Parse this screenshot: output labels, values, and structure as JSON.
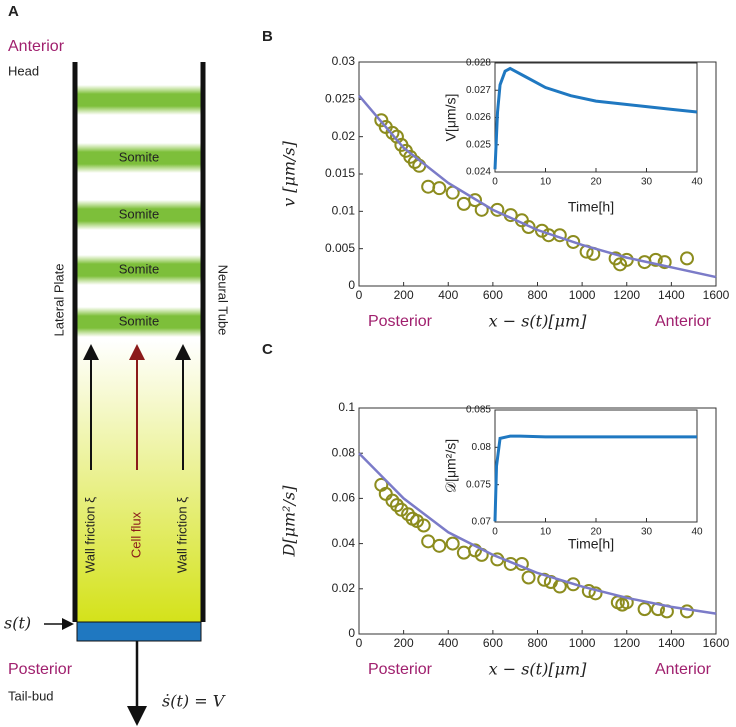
{
  "diagram": {
    "panel_label": "A",
    "top_label": "Anterior",
    "top_sublabel": "Head",
    "somites": [
      "Somite",
      "Somite",
      "Somite",
      "Somite"
    ],
    "left_label": "Lateral Plate",
    "right_label": "Neural Tube",
    "arrows": [
      "Wall friction ξ",
      "Cell flux",
      "Wall friction ξ"
    ],
    "front_label": "s(t)",
    "bottom_label": "Posterior",
    "bottom_sublabel": "Tail-bud",
    "velocity_label": "ṡ(t) = V"
  },
  "chart_data": [
    {
      "type": "scatter",
      "panel_label": "B",
      "y_label": "v [μm/s]",
      "x_label": "x − s(t)[μm]",
      "annotations": [
        "Posterior",
        "Anterior"
      ],
      "xlim": [
        0,
        1600
      ],
      "xticks": [
        0,
        200,
        400,
        600,
        800,
        1000,
        1200,
        1400,
        1600
      ],
      "ylim": [
        0,
        0.03
      ],
      "yticks": [
        0,
        0.005,
        0.01,
        0.015,
        0.02,
        0.025,
        0.03
      ],
      "series": [
        {
          "type": "scatter",
          "color": "#8c8c1e",
          "x": [
            100,
            120,
            150,
            170,
            190,
            210,
            230,
            250,
            270,
            310,
            360,
            420,
            470,
            520,
            550,
            620,
            680,
            730,
            760,
            820,
            850,
            900,
            960,
            1020,
            1050,
            1150,
            1170,
            1200,
            1280,
            1330,
            1370,
            1470
          ],
          "values": [
            0.0222,
            0.0213,
            0.0205,
            0.02,
            0.0189,
            0.0181,
            0.0173,
            0.0166,
            0.0161,
            0.0133,
            0.0131,
            0.0125,
            0.011,
            0.0115,
            0.0102,
            0.0102,
            0.0095,
            0.0088,
            0.0079,
            0.0074,
            0.0068,
            0.0068,
            0.0059,
            0.0046,
            0.0043,
            0.0037,
            0.0029,
            0.0035,
            0.0032,
            0.0035,
            0.0032,
            0.0037
          ]
        },
        {
          "type": "line",
          "color": "#7b7bc8",
          "x": [
            0,
            200,
            400,
            600,
            800,
            1000,
            1200,
            1400,
            1600
          ],
          "values": [
            0.0255,
            0.0185,
            0.0138,
            0.0102,
            0.0075,
            0.0055,
            0.0038,
            0.0025,
            0.0012
          ]
        }
      ]
    },
    {
      "type": "line",
      "y_label": "V[μm/s]",
      "x_label": "Time[h]",
      "xlim": [
        0,
        40
      ],
      "xticks": [
        0,
        10,
        20,
        30,
        40
      ],
      "ylim": [
        0.024,
        0.028
      ],
      "yticks": [
        0.024,
        0.025,
        0.026,
        0.027,
        0.028
      ],
      "series": [
        {
          "type": "line",
          "color": "#1f78c1",
          "x": [
            0,
            0.5,
            1,
            2,
            3,
            4,
            6,
            8,
            10,
            15,
            20,
            25,
            30,
            35,
            40
          ],
          "values": [
            0.0241,
            0.0262,
            0.0272,
            0.0277,
            0.0278,
            0.0277,
            0.0275,
            0.0273,
            0.0271,
            0.0268,
            0.0266,
            0.0265,
            0.0264,
            0.0263,
            0.0262
          ]
        }
      ]
    },
    {
      "type": "scatter",
      "panel_label": "C",
      "y_label": "D[μm²/s]",
      "x_label": "x − s(t)[μm]",
      "annotations": [
        "Posterior",
        "Anterior"
      ],
      "xlim": [
        0,
        1600
      ],
      "xticks": [
        0,
        200,
        400,
        600,
        800,
        1000,
        1200,
        1400,
        1600
      ],
      "ylim": [
        0,
        0.1
      ],
      "yticks": [
        0,
        0.02,
        0.04,
        0.06,
        0.08,
        0.1
      ],
      "series": [
        {
          "type": "scatter",
          "color": "#8c8c1e",
          "x": [
            100,
            120,
            150,
            170,
            190,
            220,
            240,
            260,
            290,
            310,
            360,
            420,
            470,
            520,
            550,
            620,
            680,
            730,
            760,
            830,
            860,
            900,
            960,
            1030,
            1060,
            1160,
            1180,
            1200,
            1280,
            1340,
            1380,
            1470
          ],
          "values": [
            0.066,
            0.062,
            0.059,
            0.057,
            0.055,
            0.053,
            0.051,
            0.05,
            0.048,
            0.041,
            0.039,
            0.04,
            0.036,
            0.037,
            0.035,
            0.033,
            0.031,
            0.031,
            0.025,
            0.024,
            0.023,
            0.021,
            0.022,
            0.019,
            0.018,
            0.014,
            0.013,
            0.014,
            0.011,
            0.011,
            0.01,
            0.01
          ]
        },
        {
          "type": "line",
          "color": "#7b7bc8",
          "x": [
            0,
            200,
            400,
            600,
            800,
            1000,
            1200,
            1400,
            1600
          ],
          "values": [
            0.08,
            0.06,
            0.045,
            0.035,
            0.027,
            0.021,
            0.016,
            0.012,
            0.009
          ]
        }
      ]
    },
    {
      "type": "line",
      "y_label": "𝒟[μm²/s]",
      "x_label": "Time[h]",
      "xlim": [
        0,
        40
      ],
      "xticks": [
        0,
        10,
        20,
        30,
        40
      ],
      "ylim": [
        0.07,
        0.085
      ],
      "yticks": [
        0.07,
        0.075,
        0.08,
        0.085
      ],
      "series": [
        {
          "type": "line",
          "color": "#1f78c1",
          "x": [
            0,
            0.3,
            1,
            3,
            5,
            10,
            20,
            30,
            40
          ],
          "values": [
            0.0701,
            0.0775,
            0.0812,
            0.0815,
            0.0815,
            0.0814,
            0.0814,
            0.0814,
            0.0814
          ]
        }
      ]
    }
  ]
}
